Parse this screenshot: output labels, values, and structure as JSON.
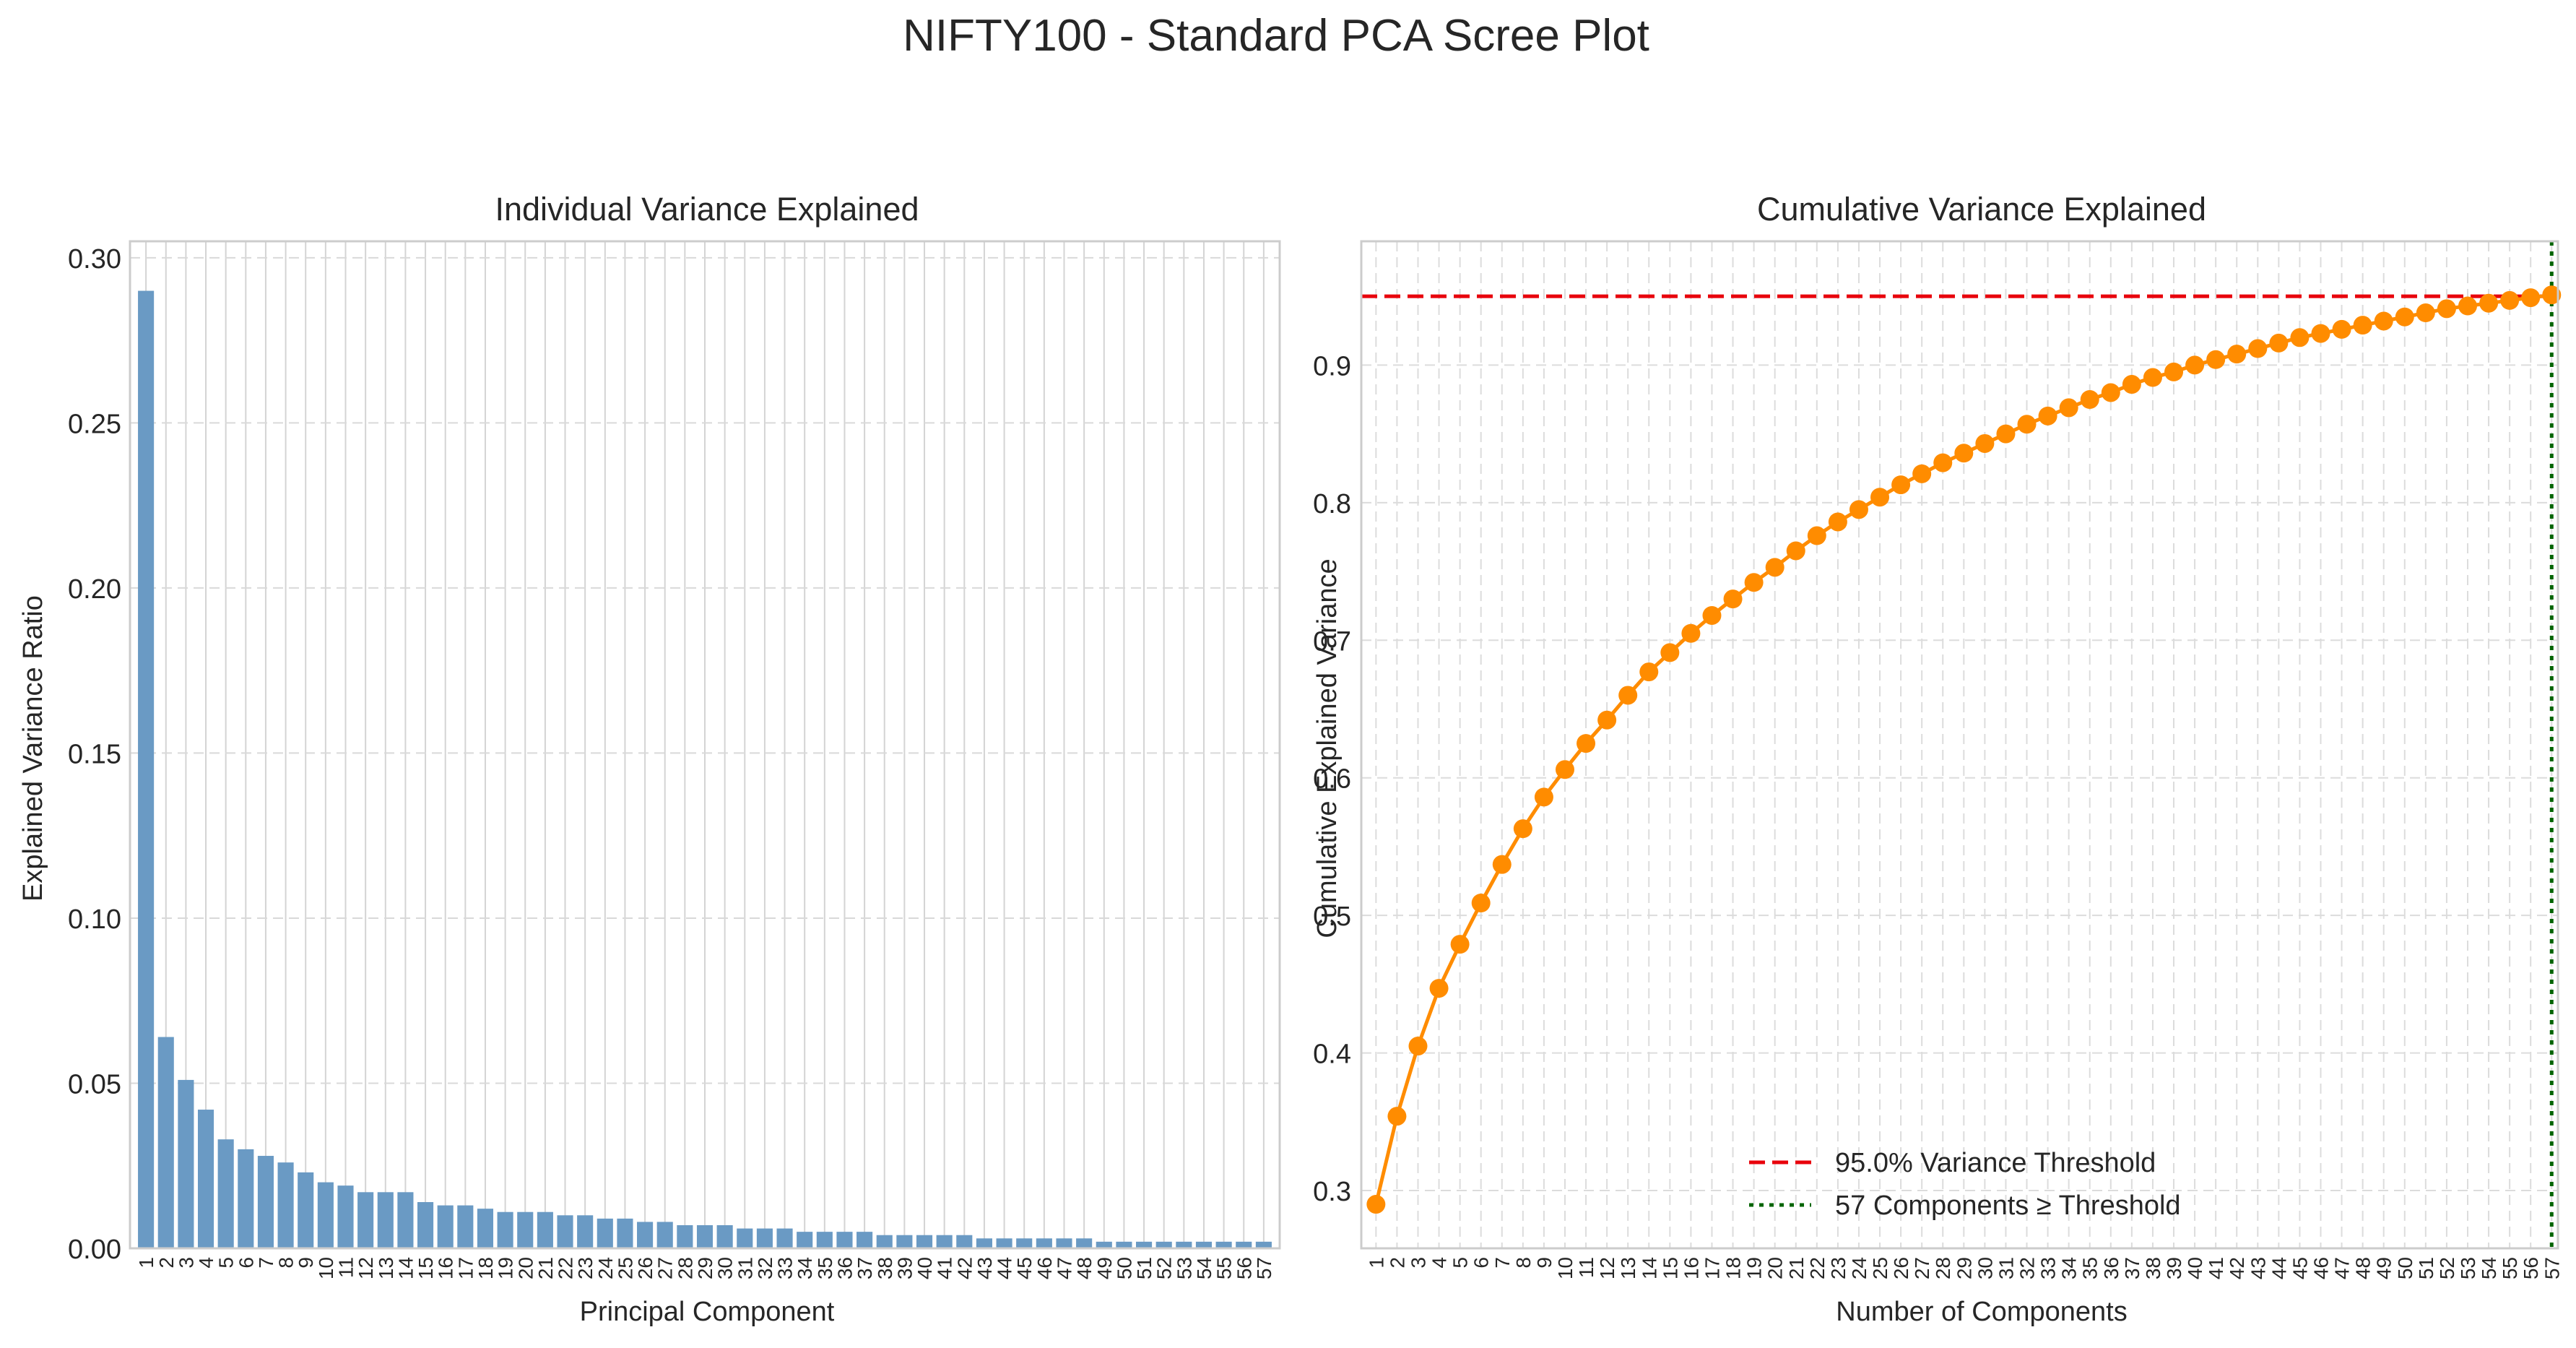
{
  "figure": {
    "title": "NIFTY100 - Standard PCA Scree Plot"
  },
  "chart_data": [
    {
      "type": "bar",
      "title": "Individual Variance Explained",
      "xlabel": "Principal Component",
      "ylabel": "Explained Variance Ratio",
      "ylim": [
        0,
        0.305
      ],
      "yticks": [
        0.0,
        0.05,
        0.1,
        0.15,
        0.2,
        0.25,
        0.3
      ],
      "ytick_labels": [
        "0.00",
        "0.05",
        "0.10",
        "0.15",
        "0.20",
        "0.25",
        "0.30"
      ],
      "grid": true,
      "bar_color": "#6a9ac4",
      "categories": [
        "1",
        "2",
        "3",
        "4",
        "5",
        "6",
        "7",
        "8",
        "9",
        "10",
        "11",
        "12",
        "13",
        "14",
        "15",
        "16",
        "17",
        "18",
        "19",
        "20",
        "21",
        "22",
        "23",
        "24",
        "25",
        "26",
        "27",
        "28",
        "29",
        "30",
        "31",
        "32",
        "33",
        "34",
        "35",
        "36",
        "37",
        "38",
        "39",
        "40",
        "41",
        "42",
        "43",
        "44",
        "45",
        "46",
        "47",
        "48",
        "49",
        "50",
        "51",
        "52",
        "53",
        "54",
        "55",
        "56",
        "57"
      ],
      "values": [
        0.29,
        0.064,
        0.051,
        0.042,
        0.033,
        0.03,
        0.028,
        0.026,
        0.023,
        0.02,
        0.019,
        0.017,
        0.017,
        0.017,
        0.014,
        0.013,
        0.013,
        0.012,
        0.011,
        0.011,
        0.011,
        0.01,
        0.01,
        0.009,
        0.009,
        0.008,
        0.008,
        0.007,
        0.007,
        0.007,
        0.006,
        0.006,
        0.006,
        0.005,
        0.005,
        0.005,
        0.005,
        0.004,
        0.004,
        0.004,
        0.004,
        0.004,
        0.003,
        0.003,
        0.003,
        0.003,
        0.003,
        0.003,
        0.002,
        0.002,
        0.002,
        0.002,
        0.002,
        0.002,
        0.002,
        0.002,
        0.002
      ]
    },
    {
      "type": "line",
      "title": "Cumulative Variance Explained",
      "xlabel": "Number of Components",
      "ylabel": "Cumulative Explained Variance",
      "ylim": [
        0.258,
        0.99
      ],
      "yticks": [
        0.3,
        0.4,
        0.5,
        0.6,
        0.7,
        0.8,
        0.9
      ],
      "ytick_labels": [
        "0.3",
        "0.4",
        "0.5",
        "0.6",
        "0.7",
        "0.8",
        "0.9"
      ],
      "grid": true,
      "line_color": "#ff8c00",
      "x": [
        1,
        2,
        3,
        4,
        5,
        6,
        7,
        8,
        9,
        10,
        11,
        12,
        13,
        14,
        15,
        16,
        17,
        18,
        19,
        20,
        21,
        22,
        23,
        24,
        25,
        26,
        27,
        28,
        29,
        30,
        31,
        32,
        33,
        34,
        35,
        36,
        37,
        38,
        39,
        40,
        41,
        42,
        43,
        44,
        45,
        46,
        47,
        48,
        49,
        50,
        51,
        52,
        53,
        54,
        55,
        56,
        57
      ],
      "x_labels": [
        "1",
        "2",
        "3",
        "4",
        "5",
        "6",
        "7",
        "8",
        "9",
        "10",
        "11",
        "12",
        "13",
        "14",
        "15",
        "16",
        "17",
        "18",
        "19",
        "20",
        "21",
        "22",
        "23",
        "24",
        "25",
        "26",
        "27",
        "28",
        "29",
        "30",
        "31",
        "32",
        "33",
        "34",
        "35",
        "36",
        "37",
        "38",
        "39",
        "40",
        "41",
        "42",
        "43",
        "44",
        "45",
        "46",
        "47",
        "48",
        "49",
        "50",
        "51",
        "52",
        "53",
        "54",
        "55",
        "56",
        "57"
      ],
      "y": [
        0.29,
        0.354,
        0.405,
        0.447,
        0.479,
        0.509,
        0.537,
        0.563,
        0.586,
        0.606,
        0.625,
        0.642,
        0.66,
        0.677,
        0.691,
        0.705,
        0.718,
        0.73,
        0.742,
        0.753,
        0.765,
        0.776,
        0.786,
        0.795,
        0.804,
        0.813,
        0.821,
        0.829,
        0.836,
        0.843,
        0.85,
        0.857,
        0.863,
        0.869,
        0.875,
        0.88,
        0.886,
        0.891,
        0.895,
        0.9,
        0.904,
        0.908,
        0.912,
        0.916,
        0.92,
        0.923,
        0.926,
        0.929,
        0.932,
        0.935,
        0.938,
        0.941,
        0.943,
        0.945,
        0.947,
        0.949,
        0.951
      ],
      "threshold": {
        "value": 0.95,
        "color": "#e8000b",
        "label": "95.0% Variance Threshold"
      },
      "components_line": {
        "value": 57,
        "color": "#006400",
        "label": "57 Components ≥ Threshold"
      },
      "legend_position": "lower center"
    }
  ]
}
